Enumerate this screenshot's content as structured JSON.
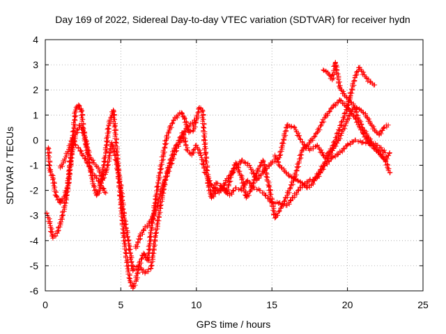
{
  "chart_data": {
    "type": "scatter",
    "title": "Day 169 of 2022, Sidereal Day-to-day VTEC variation (SDTVAR) for receiver hydn",
    "xlabel": "GPS time / hours",
    "ylabel": "SDTVAR / TECUs",
    "xlim": [
      0,
      25
    ],
    "ylim": [
      -6,
      4
    ],
    "x_ticks": [
      "0",
      "5",
      "10",
      "15",
      "20",
      "25"
    ],
    "y_ticks": [
      "-6",
      "-5",
      "-4",
      "-3",
      "-2",
      "-1",
      "0",
      "1",
      "2",
      "3",
      "4"
    ],
    "grid": true,
    "marker": "plus",
    "color": "#ff0000",
    "series": [
      {
        "points": [
          [
            0.2,
            -0.3
          ],
          [
            0.3,
            -1.2
          ],
          [
            0.5,
            -1.5
          ],
          [
            0.7,
            -2.2
          ],
          [
            1.0,
            -2.5
          ],
          [
            1.3,
            -2.2
          ],
          [
            1.5,
            -1.8
          ],
          [
            1.7,
            -0.6
          ],
          [
            1.9,
            0.5
          ],
          [
            2.0,
            1.2
          ],
          [
            2.2,
            1.4
          ],
          [
            2.4,
            1.2
          ],
          [
            2.5,
            0.5
          ],
          [
            2.7,
            -0.2
          ],
          [
            3.0,
            -1.2
          ],
          [
            3.2,
            -1.8
          ],
          [
            3.4,
            -2.2
          ],
          [
            3.6,
            -2.0
          ],
          [
            3.8,
            -1.3
          ],
          [
            4.0,
            -0.5
          ],
          [
            4.2,
            0.6
          ],
          [
            4.4,
            1.0
          ],
          [
            4.5,
            1.2
          ],
          [
            4.6,
            0.6
          ],
          [
            4.8,
            -1.0
          ],
          [
            5.0,
            -2.5
          ],
          [
            5.2,
            -3.8
          ],
          [
            5.4,
            -4.8
          ],
          [
            5.6,
            -5.6
          ],
          [
            5.8,
            -5.9
          ],
          [
            6.0,
            -5.6
          ],
          [
            6.2,
            -5.0
          ],
          [
            6.5,
            -4.5
          ],
          [
            6.8,
            -4.8
          ],
          [
            7.0,
            -3.6
          ],
          [
            7.2,
            -2.8
          ],
          [
            7.5,
            -1.6
          ],
          [
            7.8,
            -0.6
          ],
          [
            8.0,
            0.0
          ],
          [
            8.2,
            0.4
          ],
          [
            8.5,
            0.8
          ],
          [
            8.8,
            1.0
          ],
          [
            9.0,
            1.1
          ],
          [
            9.2,
            0.9
          ],
          [
            9.5,
            0.3
          ],
          [
            9.8,
            0.4
          ],
          [
            10.0,
            0.8
          ],
          [
            10.2,
            1.3
          ],
          [
            10.4,
            1.2
          ],
          [
            10.6,
            -0.5
          ],
          [
            10.8,
            -1.8
          ],
          [
            11.0,
            -2.3
          ],
          [
            11.3,
            -1.7
          ],
          [
            11.6,
            -1.8
          ],
          [
            12.0,
            -2.1
          ],
          [
            12.3,
            -1.4
          ],
          [
            12.6,
            -0.9
          ],
          [
            13.0,
            -1.5
          ],
          [
            13.3,
            -2.3
          ],
          [
            13.6,
            -2.0
          ],
          [
            14.0,
            -1.3
          ],
          [
            14.4,
            -0.8
          ],
          [
            14.8,
            -1.8
          ],
          [
            15.2,
            -3.1
          ],
          [
            15.6,
            -2.7
          ],
          [
            16.0,
            -2.2
          ],
          [
            16.5,
            -1.5
          ],
          [
            17.0,
            -0.4
          ],
          [
            17.5,
            -0.1
          ],
          [
            18.0,
            0.3
          ],
          [
            18.5,
            0.9
          ],
          [
            19.0,
            1.3
          ],
          [
            19.5,
            1.6
          ],
          [
            20.0,
            1.3
          ],
          [
            20.5,
            0.9
          ],
          [
            21.0,
            0.3
          ],
          [
            21.5,
            -0.2
          ],
          [
            22.0,
            -0.4
          ],
          [
            22.5,
            -0.8
          ],
          [
            22.8,
            -1.3
          ]
        ]
      },
      {
        "points": [
          [
            0.1,
            -2.9
          ],
          [
            0.3,
            -3.3
          ],
          [
            0.5,
            -3.9
          ],
          [
            0.8,
            -3.7
          ],
          [
            1.1,
            -3.1
          ],
          [
            1.4,
            -2.3
          ],
          [
            1.6,
            -1.3
          ],
          [
            1.8,
            -0.3
          ],
          [
            2.0,
            0.2
          ],
          [
            2.3,
            0.6
          ],
          [
            2.6,
            0.2
          ],
          [
            2.9,
            -0.6
          ],
          [
            3.2,
            -0.9
          ],
          [
            3.5,
            -1.1
          ],
          [
            3.8,
            -1.6
          ],
          [
            4.1,
            -1.1
          ],
          [
            4.4,
            -0.1
          ],
          [
            4.7,
            -0.8
          ],
          [
            5.0,
            -1.9
          ],
          [
            5.2,
            -3.0
          ],
          [
            5.5,
            -4.0
          ],
          [
            5.8,
            -5.2
          ],
          [
            6.2,
            -5.0
          ],
          [
            6.6,
            -5.3
          ],
          [
            7.0,
            -5.1
          ],
          [
            7.3,
            -3.8
          ],
          [
            7.6,
            -2.7
          ],
          [
            7.9,
            -1.7
          ],
          [
            8.2,
            -1.0
          ],
          [
            8.5,
            -0.4
          ],
          [
            8.8,
            -0.1
          ],
          [
            9.1,
            0.3
          ],
          [
            9.4,
            -0.4
          ],
          [
            9.7,
            -0.6
          ],
          [
            10.0,
            -0.2
          ],
          [
            10.3,
            -0.6
          ],
          [
            10.6,
            -1.3
          ],
          [
            11.0,
            -1.8
          ],
          [
            11.5,
            -2.1
          ],
          [
            12.0,
            -1.6
          ],
          [
            12.5,
            -1.2
          ],
          [
            13.0,
            -0.8
          ],
          [
            13.5,
            -1.0
          ],
          [
            14.0,
            -1.6
          ],
          [
            14.5,
            -1.2
          ],
          [
            15.0,
            -0.9
          ],
          [
            15.5,
            -0.7
          ],
          [
            16.0,
            0.6
          ],
          [
            16.5,
            0.5
          ],
          [
            17.0,
            -0.1
          ],
          [
            17.5,
            -0.4
          ],
          [
            18.0,
            -0.2
          ],
          [
            18.5,
            -0.7
          ],
          [
            19.0,
            -0.3
          ],
          [
            19.5,
            0.5
          ],
          [
            20.0,
            1.3
          ],
          [
            20.5,
            2.5
          ],
          [
            20.8,
            2.9
          ],
          [
            21.1,
            2.6
          ],
          [
            21.5,
            2.3
          ],
          [
            21.8,
            2.2
          ]
        ]
      },
      {
        "points": [
          [
            1.0,
            -1.1
          ],
          [
            1.2,
            -0.9
          ],
          [
            1.4,
            -0.6
          ],
          [
            1.6,
            -0.3
          ],
          [
            1.8,
            0.1
          ],
          [
            2.0,
            -0.2
          ],
          [
            2.2,
            -0.3
          ],
          [
            2.5,
            -0.6
          ],
          [
            2.8,
            -0.9
          ],
          [
            3.1,
            -1.3
          ],
          [
            3.4,
            -1.5
          ],
          [
            3.7,
            -1.8
          ],
          [
            4.0,
            -2.1
          ],
          [
            6.0,
            -4.3
          ],
          [
            6.3,
            -3.8
          ],
          [
            6.6,
            -3.5
          ],
          [
            6.9,
            -3.3
          ],
          [
            7.2,
            -3.0
          ],
          [
            7.5,
            -2.4
          ],
          [
            7.8,
            -1.8
          ],
          [
            8.1,
            -1.3
          ],
          [
            8.4,
            -0.8
          ],
          [
            8.7,
            -0.3
          ],
          [
            9.0,
            0.0
          ],
          [
            9.3,
            0.4
          ],
          [
            9.6,
            0.6
          ],
          [
            9.9,
            0.8
          ],
          [
            11.0,
            -2.3
          ],
          [
            11.4,
            -2.0
          ],
          [
            11.8,
            -1.9
          ],
          [
            12.2,
            -2.2
          ],
          [
            12.6,
            -1.9
          ],
          [
            13.0,
            -2.0
          ],
          [
            13.4,
            -1.6
          ],
          [
            13.8,
            -1.9
          ],
          [
            14.2,
            -2.0
          ],
          [
            14.6,
            -2.2
          ],
          [
            15.0,
            -2.5
          ],
          [
            15.5,
            -2.5
          ],
          [
            16.0,
            -2.6
          ],
          [
            16.5,
            -2.2
          ],
          [
            17.0,
            -1.8
          ],
          [
            17.5,
            -1.6
          ],
          [
            18.0,
            -1.5
          ],
          [
            18.5,
            -1.0
          ],
          [
            19.0,
            -0.7
          ],
          [
            19.5,
            -0.5
          ],
          [
            20.0,
            -0.2
          ],
          [
            20.5,
            0.0
          ],
          [
            21.0,
            -0.1
          ],
          [
            21.5,
            -0.1
          ],
          [
            22.0,
            -0.2
          ],
          [
            22.5,
            -0.5
          ]
        ]
      },
      {
        "points": [
          [
            15.2,
            -0.6
          ],
          [
            15.5,
            -1.0
          ],
          [
            15.8,
            -1.2
          ],
          [
            16.1,
            -1.4
          ],
          [
            16.4,
            -1.5
          ],
          [
            16.7,
            -1.6
          ],
          [
            17.0,
            -1.7
          ],
          [
            17.3,
            -1.9
          ],
          [
            17.6,
            -1.8
          ],
          [
            17.9,
            -1.5
          ],
          [
            18.2,
            -1.2
          ],
          [
            18.5,
            -0.9
          ],
          [
            18.8,
            -0.6
          ],
          [
            19.1,
            -0.3
          ],
          [
            19.4,
            0.0
          ],
          [
            19.7,
            0.4
          ],
          [
            20.0,
            0.8
          ],
          [
            20.3,
            1.2
          ],
          [
            20.6,
            1.3
          ],
          [
            20.9,
            1.2
          ],
          [
            21.2,
            1.0
          ],
          [
            21.5,
            0.7
          ],
          [
            21.8,
            0.4
          ],
          [
            22.1,
            0.2
          ],
          [
            22.4,
            0.5
          ],
          [
            22.7,
            0.6
          ],
          [
            18.4,
            2.8
          ],
          [
            18.7,
            2.7
          ],
          [
            19.0,
            2.4
          ],
          [
            19.2,
            3.1
          ],
          [
            19.5,
            2.1
          ],
          [
            19.8,
            1.8
          ],
          [
            20.1,
            1.6
          ],
          [
            20.4,
            1.4
          ],
          [
            20.7,
            0.9
          ],
          [
            21.0,
            0.5
          ],
          [
            21.3,
            0.2
          ],
          [
            21.6,
            -0.1
          ],
          [
            21.9,
            -0.4
          ],
          [
            22.2,
            -0.6
          ],
          [
            22.5,
            -0.8
          ],
          [
            22.8,
            -0.5
          ]
        ]
      }
    ]
  }
}
